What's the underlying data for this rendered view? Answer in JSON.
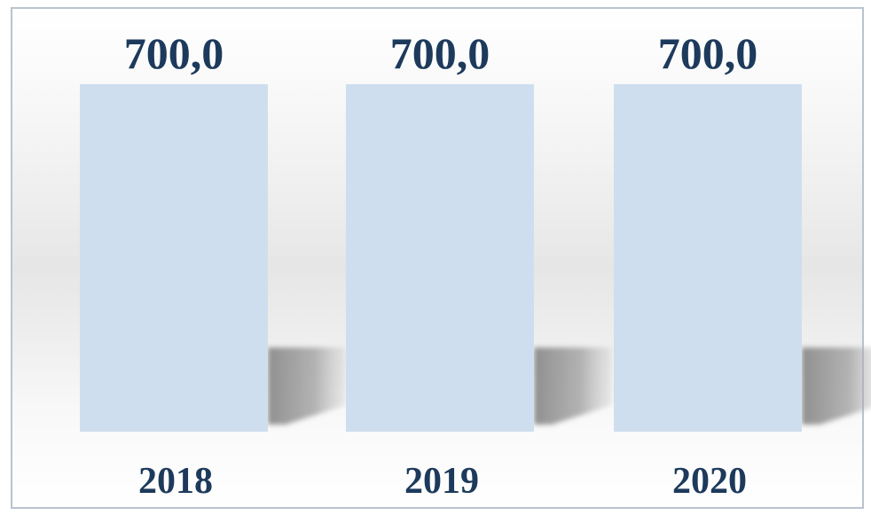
{
  "chart_data": {
    "type": "bar",
    "categories": [
      "2018",
      "2019",
      "2020"
    ],
    "values": [
      700.0,
      700.0,
      700.0
    ],
    "value_labels": [
      "700,0",
      "700,0",
      "700,0"
    ],
    "title": "",
    "xlabel": "",
    "ylabel": "",
    "ylim": [
      0,
      700
    ],
    "grid": false,
    "legend": "none",
    "bar_color": "#cfdeee",
    "label_color": "#1d3a5c",
    "shadow_color": "#8e8e8e"
  }
}
